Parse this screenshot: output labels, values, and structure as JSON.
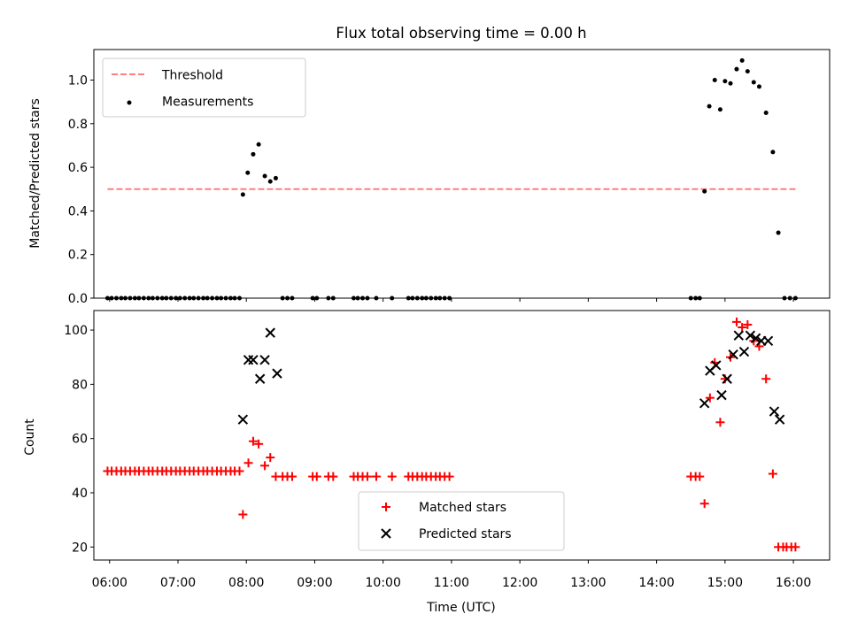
{
  "title": "Flux total observing time = 0.00 h",
  "xlabel": "Time (UTC)",
  "x_ticks": [
    "06:00",
    "07:00",
    "08:00",
    "09:00",
    "10:00",
    "11:00",
    "12:00",
    "13:00",
    "14:00",
    "15:00",
    "16:00"
  ],
  "colors": {
    "threshold": "#ff7f7f",
    "measurement": "#000000",
    "matched": "#ff0000",
    "predicted": "#000000"
  },
  "chart_data": [
    {
      "type": "scatter",
      "ylabel": "Matched/Predicted stars",
      "xlim": [
        5.77,
        16.53
      ],
      "ylim": [
        0,
        1.14
      ],
      "y_ticks": [
        "0.0",
        "0.2",
        "0.4",
        "0.6",
        "0.8",
        "1.0"
      ],
      "y_tick_values": [
        0,
        0.2,
        0.4,
        0.6,
        0.8,
        1.0
      ],
      "legend_position": "top-left",
      "threshold": {
        "name": "Threshold",
        "value": 0.5,
        "x_range": [
          5.97,
          16.05
        ]
      },
      "series": [
        {
          "name": "Measurements",
          "points": [
            [
              5.97,
              0
            ],
            [
              6.03,
              0
            ],
            [
              6.1,
              0
            ],
            [
              6.17,
              0
            ],
            [
              6.23,
              0
            ],
            [
              6.3,
              0
            ],
            [
              6.37,
              0
            ],
            [
              6.43,
              0
            ],
            [
              6.5,
              0
            ],
            [
              6.57,
              0
            ],
            [
              6.63,
              0
            ],
            [
              6.7,
              0
            ],
            [
              6.77,
              0
            ],
            [
              6.83,
              0
            ],
            [
              6.9,
              0
            ],
            [
              6.97,
              0
            ],
            [
              7.03,
              0
            ],
            [
              7.1,
              0
            ],
            [
              7.17,
              0
            ],
            [
              7.23,
              0
            ],
            [
              7.3,
              0
            ],
            [
              7.37,
              0
            ],
            [
              7.43,
              0
            ],
            [
              7.5,
              0
            ],
            [
              7.57,
              0
            ],
            [
              7.63,
              0
            ],
            [
              7.7,
              0
            ],
            [
              7.77,
              0
            ],
            [
              7.83,
              0
            ],
            [
              7.9,
              0
            ],
            [
              7.95,
              0.475
            ],
            [
              8.02,
              0.575
            ],
            [
              8.1,
              0.66
            ],
            [
              8.18,
              0.705
            ],
            [
              8.27,
              0.56
            ],
            [
              8.35,
              0.535
            ],
            [
              8.43,
              0.55
            ],
            [
              8.53,
              0
            ],
            [
              8.6,
              0
            ],
            [
              8.67,
              0
            ],
            [
              8.97,
              0
            ],
            [
              9.03,
              0
            ],
            [
              9.2,
              0
            ],
            [
              9.27,
              0
            ],
            [
              9.57,
              0
            ],
            [
              9.63,
              0
            ],
            [
              9.7,
              0
            ],
            [
              9.77,
              0
            ],
            [
              9.9,
              0
            ],
            [
              10.13,
              0
            ],
            [
              10.37,
              0
            ],
            [
              10.43,
              0
            ],
            [
              10.5,
              0
            ],
            [
              10.57,
              0
            ],
            [
              10.63,
              0
            ],
            [
              10.7,
              0
            ],
            [
              10.77,
              0
            ],
            [
              10.83,
              0
            ],
            [
              10.9,
              0
            ],
            [
              10.97,
              0
            ],
            [
              14.5,
              0
            ],
            [
              14.57,
              0
            ],
            [
              14.63,
              0
            ],
            [
              14.7,
              0.49
            ],
            [
              14.77,
              0.88
            ],
            [
              14.85,
              1.0
            ],
            [
              14.93,
              0.865
            ],
            [
              15.0,
              0.995
            ],
            [
              15.08,
              0.985
            ],
            [
              15.17,
              1.05
            ],
            [
              15.25,
              1.09
            ],
            [
              15.33,
              1.04
            ],
            [
              15.42,
              0.99
            ],
            [
              15.5,
              0.97
            ],
            [
              15.6,
              0.85
            ],
            [
              15.7,
              0.67
            ],
            [
              15.78,
              0.3
            ],
            [
              15.87,
              0
            ],
            [
              15.95,
              0
            ],
            [
              16.03,
              0
            ]
          ]
        }
      ]
    },
    {
      "type": "scatter",
      "ylabel": "Count",
      "xlim": [
        5.77,
        16.53
      ],
      "ylim": [
        15.2,
        107.2
      ],
      "y_ticks": [
        "20",
        "40",
        "60",
        "80",
        "100"
      ],
      "y_tick_values": [
        20,
        40,
        60,
        80,
        100
      ],
      "legend_position": "bottom-center",
      "series": [
        {
          "name": "Matched stars",
          "marker": "plus",
          "points": [
            [
              5.97,
              48
            ],
            [
              6.03,
              48
            ],
            [
              6.1,
              48
            ],
            [
              6.17,
              48
            ],
            [
              6.23,
              48
            ],
            [
              6.3,
              48
            ],
            [
              6.37,
              48
            ],
            [
              6.43,
              48
            ],
            [
              6.5,
              48
            ],
            [
              6.57,
              48
            ],
            [
              6.63,
              48
            ],
            [
              6.7,
              48
            ],
            [
              6.77,
              48
            ],
            [
              6.83,
              48
            ],
            [
              6.9,
              48
            ],
            [
              6.97,
              48
            ],
            [
              7.03,
              48
            ],
            [
              7.1,
              48
            ],
            [
              7.17,
              48
            ],
            [
              7.23,
              48
            ],
            [
              7.3,
              48
            ],
            [
              7.37,
              48
            ],
            [
              7.43,
              48
            ],
            [
              7.5,
              48
            ],
            [
              7.57,
              48
            ],
            [
              7.63,
              48
            ],
            [
              7.7,
              48
            ],
            [
              7.77,
              48
            ],
            [
              7.83,
              48
            ],
            [
              7.9,
              48
            ],
            [
              7.95,
              32
            ],
            [
              8.03,
              51
            ],
            [
              8.1,
              59
            ],
            [
              8.18,
              58
            ],
            [
              8.27,
              50
            ],
            [
              8.35,
              53
            ],
            [
              8.43,
              46
            ],
            [
              8.53,
              46
            ],
            [
              8.6,
              46
            ],
            [
              8.67,
              46
            ],
            [
              8.97,
              46
            ],
            [
              9.03,
              46
            ],
            [
              9.2,
              46
            ],
            [
              9.27,
              46
            ],
            [
              9.57,
              46
            ],
            [
              9.63,
              46
            ],
            [
              9.7,
              46
            ],
            [
              9.77,
              46
            ],
            [
              9.9,
              46
            ],
            [
              10.13,
              46
            ],
            [
              10.37,
              46
            ],
            [
              10.43,
              46
            ],
            [
              10.5,
              46
            ],
            [
              10.57,
              46
            ],
            [
              10.63,
              46
            ],
            [
              10.7,
              46
            ],
            [
              10.77,
              46
            ],
            [
              10.83,
              46
            ],
            [
              10.9,
              46
            ],
            [
              10.97,
              46
            ],
            [
              14.5,
              46
            ],
            [
              14.57,
              46
            ],
            [
              14.63,
              46
            ],
            [
              14.7,
              36
            ],
            [
              14.78,
              75
            ],
            [
              14.85,
              88
            ],
            [
              14.93,
              66
            ],
            [
              15.0,
              82
            ],
            [
              15.08,
              90
            ],
            [
              15.17,
              103
            ],
            [
              15.25,
              101
            ],
            [
              15.33,
              102
            ],
            [
              15.42,
              96
            ],
            [
              15.5,
              94
            ],
            [
              15.6,
              82
            ],
            [
              15.7,
              47
            ],
            [
              15.78,
              20
            ],
            [
              15.85,
              20
            ],
            [
              15.9,
              20
            ],
            [
              15.97,
              20
            ],
            [
              16.03,
              20
            ]
          ]
        },
        {
          "name": "Predicted stars",
          "marker": "x",
          "points": [
            [
              7.95,
              67
            ],
            [
              8.03,
              89
            ],
            [
              8.1,
              89
            ],
            [
              8.2,
              82
            ],
            [
              8.27,
              89
            ],
            [
              8.35,
              99
            ],
            [
              8.45,
              84
            ],
            [
              14.7,
              73
            ],
            [
              14.78,
              85
            ],
            [
              14.87,
              87
            ],
            [
              14.95,
              76
            ],
            [
              15.03,
              82
            ],
            [
              15.12,
              91
            ],
            [
              15.2,
              98
            ],
            [
              15.28,
              92
            ],
            [
              15.37,
              98
            ],
            [
              15.45,
              97
            ],
            [
              15.53,
              96
            ],
            [
              15.63,
              96
            ],
            [
              15.72,
              70
            ],
            [
              15.8,
              67
            ]
          ]
        }
      ]
    }
  ]
}
